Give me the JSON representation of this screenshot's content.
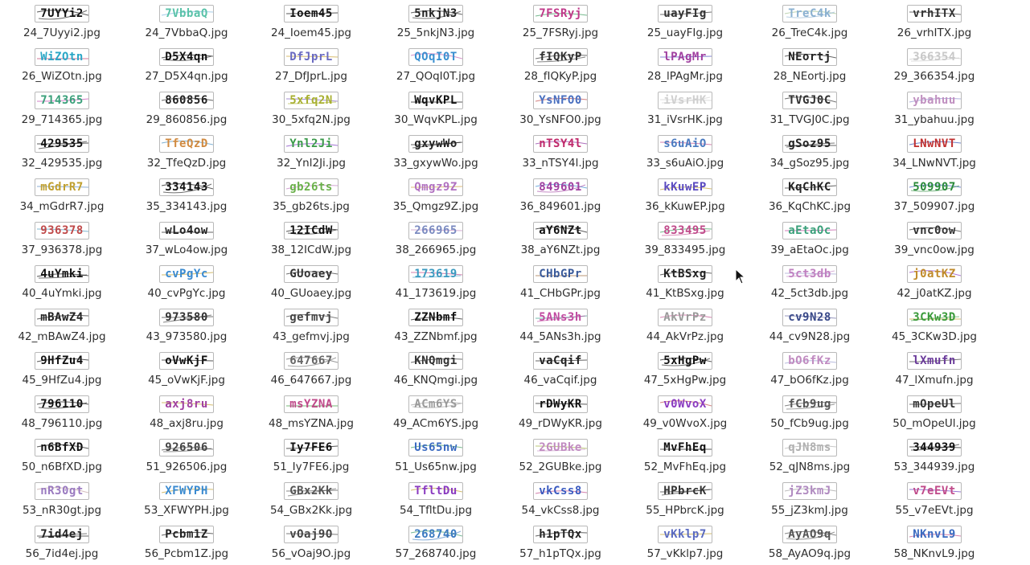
{
  "files": [
    {
      "name": "24_7Uyyi2.jpg",
      "text": "7UYYi2",
      "colors": [
        "#111111"
      ]
    },
    {
      "name": "24_7VbbaQ.jpg",
      "text": "7VbbaQ",
      "colors": [
        "#59c2a8",
        "#7fb8e0"
      ]
    },
    {
      "name": "24_Ioem45.jpg",
      "text": "Ioem45",
      "colors": [
        "#111111"
      ]
    },
    {
      "name": "25_5nkjN3.jpg",
      "text": "5nkjN3",
      "colors": [
        "#222222"
      ]
    },
    {
      "name": "25_7FSRyj.jpg",
      "text": "7FSRyj",
      "colors": [
        "#c03a8a",
        "#3a9a5c",
        "#d98a2a"
      ]
    },
    {
      "name": "25_uayFIg.jpg",
      "text": "uayFIg",
      "colors": [
        "#333333"
      ]
    },
    {
      "name": "26_TreC4k.jpg",
      "text": "TreC4k",
      "colors": [
        "#8ab0d0",
        "#a0c090"
      ]
    },
    {
      "name": "26_vrhITX.jpg",
      "text": "vrhITX",
      "colors": [
        "#333333"
      ]
    },
    {
      "name": "26_WiZOtn.jpg",
      "text": "WiZOtn",
      "colors": [
        "#2aa6c6",
        "#c03a6a"
      ]
    },
    {
      "name": "27_D5X4qn.jpg",
      "text": "D5X4qn",
      "colors": [
        "#111111"
      ]
    },
    {
      "name": "27_DfJprL.jpg",
      "text": "DfJprL",
      "colors": [
        "#6a6ac0",
        "#c8a030"
      ]
    },
    {
      "name": "27_QOqI0T.jpg",
      "text": "QOqI0T",
      "colors": [
        "#3a8fd0",
        "#c060b0"
      ]
    },
    {
      "name": "28_fIQKyP.jpg",
      "text": "fIQKyP",
      "colors": [
        "#333333"
      ]
    },
    {
      "name": "28_lPAgMr.jpg",
      "text": "lPAgMr",
      "colors": [
        "#a040a0",
        "#5050c0"
      ]
    },
    {
      "name": "28_NEortj.jpg",
      "text": "NEortj",
      "colors": [
        "#222222"
      ]
    },
    {
      "name": "29_366354.jpg",
      "text": "366354",
      "colors": [
        "#c8c8c8"
      ]
    },
    {
      "name": "29_714365.jpg",
      "text": "714365",
      "colors": [
        "#3aa07a",
        "#c04ab0"
      ]
    },
    {
      "name": "29_860856.jpg",
      "text": "860856",
      "colors": [
        "#222222"
      ]
    },
    {
      "name": "30_5xfq2N.jpg",
      "text": "5xfq2N",
      "colors": [
        "#a8b030",
        "#8060c0"
      ]
    },
    {
      "name": "30_WqvKPL.jpg",
      "text": "WqvKPL",
      "colors": [
        "#111111"
      ]
    },
    {
      "name": "30_YsNFO0.jpg",
      "text": "YsNFO0",
      "colors": [
        "#4a70c0",
        "#c04a4a"
      ]
    },
    {
      "name": "31_iVsrHK.jpg",
      "text": "iVsrHK",
      "colors": [
        "#cfcfcf"
      ]
    },
    {
      "name": "31_TVGJ0C.jpg",
      "text": "TVGJ0C",
      "colors": [
        "#333333"
      ]
    },
    {
      "name": "31_ybahuu.jpg",
      "text": "ybahuu",
      "colors": [
        "#c090c0",
        "#9090d0"
      ]
    },
    {
      "name": "32_429535.jpg",
      "text": "429535",
      "colors": [
        "#111111"
      ]
    },
    {
      "name": "32_TfeQzD.jpg",
      "text": "TfeQzD",
      "colors": [
        "#d08a40",
        "#4a90c0"
      ]
    },
    {
      "name": "32_Ynl2Ji.jpg",
      "text": "Ynl2Ji",
      "colors": [
        "#3a9a4a",
        "#7a3ac0"
      ]
    },
    {
      "name": "33_gxywWo.jpg",
      "text": "gxywWo",
      "colors": [
        "#222222"
      ]
    },
    {
      "name": "33_nTSY4l.jpg",
      "text": "nTSY4l",
      "colors": [
        "#c02a6a",
        "#8a30a0"
      ]
    },
    {
      "name": "33_s6uAiO.jpg",
      "text": "s6uAiO",
      "colors": [
        "#4a7ac0",
        "#c04a8a"
      ]
    },
    {
      "name": "34_gSoz95.jpg",
      "text": "gSoz95",
      "colors": [
        "#222222"
      ]
    },
    {
      "name": "34_LNwNVT.jpg",
      "text": "LNwNVT",
      "colors": [
        "#c03030",
        "#3050b0"
      ]
    },
    {
      "name": "34_mGdrR7.jpg",
      "text": "mGdrR7",
      "colors": [
        "#c0a030",
        "#5a8ac0"
      ]
    },
    {
      "name": "35_334143.jpg",
      "text": "334143",
      "colors": [
        "#111111"
      ]
    },
    {
      "name": "35_gb26ts.jpg",
      "text": "gb26ts",
      "colors": [
        "#6ab04a",
        "#c080c0"
      ]
    },
    {
      "name": "35_Qmgz9Z.jpg",
      "text": "Qmgz9Z",
      "colors": [
        "#b070c0",
        "#d0a040"
      ]
    },
    {
      "name": "36_849601.jpg",
      "text": "849601",
      "colors": [
        "#a040a0",
        "#3a8ad0"
      ]
    },
    {
      "name": "36_kKuwEP.jpg",
      "text": "kKuwEP",
      "colors": [
        "#5a4ac0",
        "#c0a030"
      ]
    },
    {
      "name": "36_KqChKC.jpg",
      "text": "KqChKC",
      "colors": [
        "#222222"
      ]
    },
    {
      "name": "37_509907.jpg",
      "text": "509907",
      "colors": [
        "#2a8a3a",
        "#3a5ac0"
      ]
    },
    {
      "name": "37_936378.jpg",
      "text": "936378",
      "colors": [
        "#c04a4a",
        "#4a9ac0"
      ]
    },
    {
      "name": "37_wLo4ow.jpg",
      "text": "wLo4ow",
      "colors": [
        "#222222"
      ]
    },
    {
      "name": "38_12ICdW.jpg",
      "text": "12ICdW",
      "colors": [
        "#111111"
      ]
    },
    {
      "name": "38_266965.jpg",
      "text": "266965",
      "colors": [
        "#7a8ac0",
        "#c08ac0"
      ]
    },
    {
      "name": "38_aY6NZt.jpg",
      "text": "aY6NZt",
      "colors": [
        "#111111"
      ]
    },
    {
      "name": "39_833495.jpg",
      "text": "833495",
      "colors": [
        "#c04a8a",
        "#3a9a5a"
      ]
    },
    {
      "name": "39_aEtaOc.jpg",
      "text": "aEtaOc",
      "colors": [
        "#3aa07a",
        "#c04aa0"
      ]
    },
    {
      "name": "39_vnc0ow.jpg",
      "text": "vnc0ow",
      "colors": [
        "#333333"
      ]
    },
    {
      "name": "40_4uYmki.jpg",
      "text": "4uYmki",
      "colors": [
        "#111111"
      ]
    },
    {
      "name": "40_cvPgYc.jpg",
      "text": "cvPgYc",
      "colors": [
        "#3a8ad0",
        "#c0a030"
      ]
    },
    {
      "name": "40_GUoaey.jpg",
      "text": "GUoaey",
      "colors": [
        "#333333"
      ]
    },
    {
      "name": "41_173619.jpg",
      "text": "173619",
      "colors": [
        "#3a9ac0",
        "#c04a8a"
      ]
    },
    {
      "name": "41_CHbGPr.jpg",
      "text": "CHbGPr",
      "colors": [
        "#3a5a9a",
        "#9a6a3a"
      ]
    },
    {
      "name": "41_KtBSxg.jpg",
      "text": "KtBSxg",
      "colors": [
        "#222222"
      ]
    },
    {
      "name": "42_5ct3db.jpg",
      "text": "5ct3db",
      "colors": [
        "#c080c0",
        "#a0a0d0"
      ]
    },
    {
      "name": "42_j0atKZ.jpg",
      "text": "j0atKZ",
      "colors": [
        "#c08a2a",
        "#8a3ac0"
      ]
    },
    {
      "name": "42_mBAwZ4.jpg",
      "text": "mBAwZ4",
      "colors": [
        "#222222"
      ]
    },
    {
      "name": "43_973580.jpg",
      "text": "973580",
      "colors": [
        "#333333"
      ]
    },
    {
      "name": "43_gefmvj.jpg",
      "text": "gefmvj",
      "colors": [
        "#444444"
      ]
    },
    {
      "name": "43_ZZNbmf.jpg",
      "text": "ZZNbmf",
      "colors": [
        "#111111"
      ]
    },
    {
      "name": "44_5ANs3h.jpg",
      "text": "5ANs3h",
      "colors": [
        "#c04aa0",
        "#3a9a8a"
      ]
    },
    {
      "name": "44_AkVrPz.jpg",
      "text": "AkVrPz",
      "colors": [
        "#9a9a9a",
        "#c04a8a"
      ]
    },
    {
      "name": "44_cv9N28.jpg",
      "text": "cv9N28",
      "colors": [
        "#3a4a8a",
        "#6a6aa0"
      ]
    },
    {
      "name": "45_3CKw3D.jpg",
      "text": "3CKw3D",
      "colors": [
        "#3a9a3a",
        "#c0a030"
      ]
    },
    {
      "name": "45_9HfZu4.jpg",
      "text": "9HfZu4",
      "colors": [
        "#111111"
      ]
    },
    {
      "name": "45_oVwKjF.jpg",
      "text": "oVwKjF",
      "colors": [
        "#111111"
      ]
    },
    {
      "name": "46_647667.jpg",
      "text": "647667",
      "colors": [
        "#666666"
      ]
    },
    {
      "name": "46_KNQmgi.jpg",
      "text": "KNQmgi",
      "colors": [
        "#333333"
      ]
    },
    {
      "name": "46_vaCqif.jpg",
      "text": "vaCqif",
      "colors": [
        "#222222"
      ]
    },
    {
      "name": "47_5xHgPw.jpg",
      "text": "5xHgPw",
      "colors": [
        "#111111"
      ]
    },
    {
      "name": "47_bO6fKz.jpg",
      "text": "bO6fKz",
      "colors": [
        "#c08ac0",
        "#9aa0d0"
      ]
    },
    {
      "name": "47_lXmufn.jpg",
      "text": "lXmufn",
      "colors": [
        "#6a3a9a",
        "#3a3a3a"
      ]
    },
    {
      "name": "48_796110.jpg",
      "text": "796110",
      "colors": [
        "#111111"
      ]
    },
    {
      "name": "48_axj8ru.jpg",
      "text": "axj8ru",
      "colors": [
        "#a040a0",
        "#c0a030"
      ]
    },
    {
      "name": "48_msYZNA.jpg",
      "text": "msYZNA",
      "colors": [
        "#c04a8a",
        "#3a9a3a"
      ]
    },
    {
      "name": "49_ACm6YS.jpg",
      "text": "ACm6YS",
      "colors": [
        "#9a9a9a"
      ]
    },
    {
      "name": "49_rDWyKR.jpg",
      "text": "rDWyKR",
      "colors": [
        "#111111"
      ]
    },
    {
      "name": "49_v0WvoX.jpg",
      "text": "v0WvoX",
      "colors": [
        "#8a3ac0",
        "#c04a4a"
      ]
    },
    {
      "name": "50_fCb9ug.jpg",
      "text": "fCb9ug",
      "colors": [
        "#555555"
      ]
    },
    {
      "name": "50_mOpeUl.jpg",
      "text": "mOpeUl",
      "colors": [
        "#333333"
      ]
    },
    {
      "name": "50_n6BfXD.jpg",
      "text": "n6BfXD",
      "colors": [
        "#111111"
      ]
    },
    {
      "name": "51_926506.jpg",
      "text": "926506",
      "colors": [
        "#444444"
      ]
    },
    {
      "name": "51_Iy7FE6.jpg",
      "text": "Iy7FE6",
      "colors": [
        "#111111"
      ]
    },
    {
      "name": "51_Us65nw.jpg",
      "text": "Us65nw",
      "colors": [
        "#3a6ac0",
        "#3a9a5a"
      ]
    },
    {
      "name": "52_2GUBke.jpg",
      "text": "2GUBke",
      "colors": [
        "#c08ac0",
        "#a0b040"
      ]
    },
    {
      "name": "52_MvFhEq.jpg",
      "text": "MvFhEq",
      "colors": [
        "#111111"
      ]
    },
    {
      "name": "52_qJN8ms.jpg",
      "text": "qJN8ms",
      "colors": [
        "#b0b0b0"
      ]
    },
    {
      "name": "53_344939.jpg",
      "text": "344939",
      "colors": [
        "#111111"
      ]
    },
    {
      "name": "53_nR30gt.jpg",
      "text": "nR30gt",
      "colors": [
        "#9a7ac0",
        "#c0a0a0"
      ]
    },
    {
      "name": "53_XFWYPH.jpg",
      "text": "XFWYPH",
      "colors": [
        "#3a8ad0",
        "#c0a030"
      ]
    },
    {
      "name": "54_GBx2Kk.jpg",
      "text": "GBx2Kk",
      "colors": [
        "#555555"
      ]
    },
    {
      "name": "54_TfltDu.jpg",
      "text": "TfltDu",
      "colors": [
        "#8a3ac0",
        "#c0a030"
      ]
    },
    {
      "name": "54_vkCss8.jpg",
      "text": "vkCss8",
      "colors": [
        "#3a5ac0",
        "#c04a8a"
      ]
    },
    {
      "name": "55_HPbrcK.jpg",
      "text": "HPbrcK",
      "colors": [
        "#333333"
      ]
    },
    {
      "name": "55_jZ3kmJ.jpg",
      "text": "jZ3kmJ",
      "colors": [
        "#b08ac0",
        "#a0a0a0"
      ]
    },
    {
      "name": "55_v7eEVt.jpg",
      "text": "v7eEVt",
      "colors": [
        "#c04a8a",
        "#6a3ac0"
      ]
    },
    {
      "name": "56_7id4ej.jpg",
      "text": "7id4ej",
      "colors": [
        "#222222"
      ]
    },
    {
      "name": "56_Pcbm1Z.jpg",
      "text": "Pcbm1Z",
      "colors": [
        "#222222"
      ]
    },
    {
      "name": "56_vOaj9O.jpg",
      "text": "vOaj9O",
      "colors": [
        "#444444"
      ]
    },
    {
      "name": "57_268740.jpg",
      "text": "268740",
      "colors": [
        "#3a7ac0",
        "#3a9a6a"
      ]
    },
    {
      "name": "57_h1pTQx.jpg",
      "text": "h1pTQx",
      "colors": [
        "#222222"
      ]
    },
    {
      "name": "57_vKklp7.jpg",
      "text": "vKklp7",
      "colors": [
        "#5a6ac0",
        "#c0a030"
      ]
    },
    {
      "name": "58_AyAO9q.jpg",
      "text": "AyAO9q",
      "colors": [
        "#555555"
      ]
    },
    {
      "name": "58_NKnvL9.jpg",
      "text": "NKnvL9",
      "colors": [
        "#3a6ac0",
        "#c04a8a"
      ]
    }
  ],
  "cursor_icon": "mouse-pointer-icon"
}
